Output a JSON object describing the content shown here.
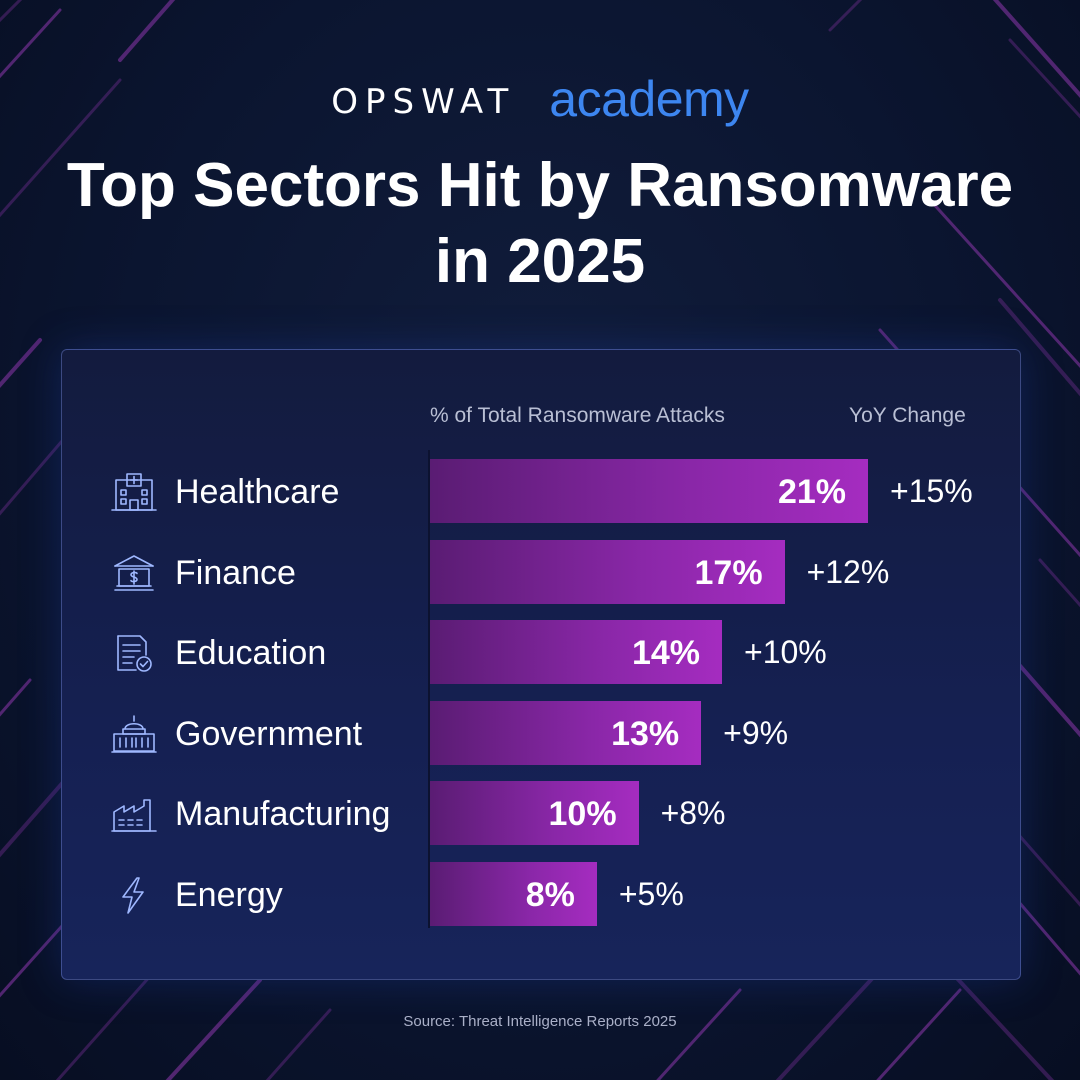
{
  "brand": {
    "name": "OPSWAT",
    "product": "academy",
    "product_color": "#3d86f0"
  },
  "title": "Top Sectors Hit by Ransomware in 2025",
  "columns": {
    "share": "% of Total Ransomware Attacks",
    "yoy": "YoY Change"
  },
  "source": "Source: Threat Intelligence Reports 2025",
  "colors": {
    "background": "#0b1530",
    "bar_start": "#5a1c73",
    "bar_end": "#a52cc0",
    "accent_blue": "#3d86f0",
    "stripe": "#6a2d8a"
  },
  "chart_data": {
    "type": "bar",
    "orientation": "horizontal",
    "title": "Top Sectors Hit by Ransomware in 2025",
    "xlabel": "% of Total Ransomware Attacks",
    "ylabel": "",
    "xlim": [
      0,
      21
    ],
    "grid": false,
    "categories": [
      "Healthcare",
      "Finance",
      "Education",
      "Government",
      "Manufacturing",
      "Energy"
    ],
    "icons": [
      "hospital-icon",
      "bank-icon",
      "document-check-icon",
      "capitol-building-icon",
      "factory-icon",
      "lightning-bolt-icon"
    ],
    "values": [
      21,
      17,
      14,
      13,
      10,
      8
    ],
    "value_labels": [
      "21%",
      "17%",
      "14%",
      "13%",
      "10%",
      "8%"
    ],
    "yoy_change": [
      "+15%",
      "+12%",
      "+10%",
      "+9%",
      "+8%",
      "+5%"
    ]
  }
}
